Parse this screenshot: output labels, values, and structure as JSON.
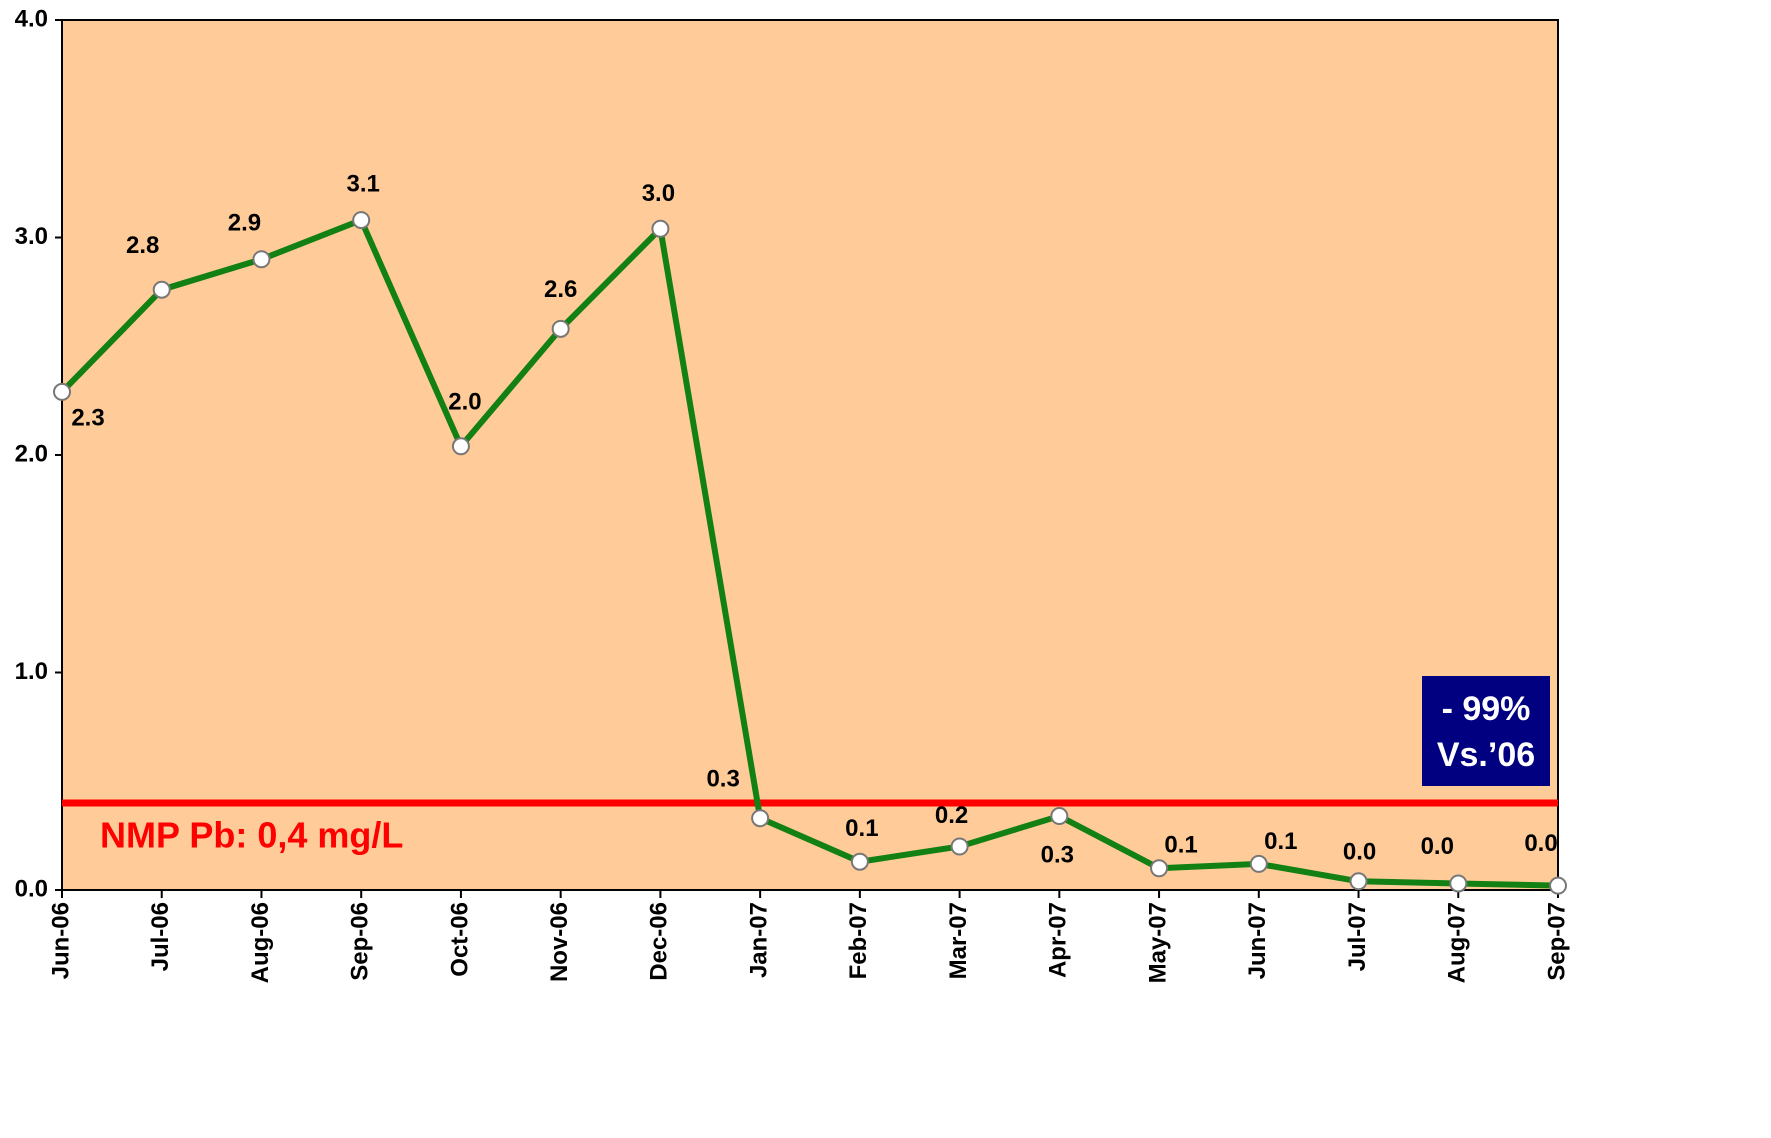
{
  "chart_data": {
    "type": "line",
    "categories": [
      "Jun-06",
      "Jul-06",
      "Aug-06",
      "Sep-06",
      "Oct-06",
      "Nov-06",
      "Dec-06",
      "Jan-07",
      "Feb-07",
      "Mar-07",
      "Apr-07",
      "May-07",
      "Jun-07",
      "Jul-07",
      "Aug-07",
      "Sep-07"
    ],
    "values": [
      2.29,
      2.76,
      2.9,
      3.08,
      2.04,
      2.58,
      3.04,
      0.33,
      0.13,
      0.2,
      0.34,
      0.1,
      0.12,
      0.04,
      0.03,
      0.02
    ],
    "value_labels": [
      "2.3",
      "2.8",
      "2.9",
      "3.1",
      "2.0",
      "2.6",
      "3.0",
      "0.3",
      "0.1",
      "0.2",
      "0.3",
      "0.1",
      "0.1",
      "0.0",
      "0.0",
      "0.0"
    ],
    "color": "#138013",
    "ylim": [
      0,
      4
    ],
    "yticks": [
      {
        "value": 0,
        "label": "0.0"
      },
      {
        "value": 1,
        "label": "1.0"
      },
      {
        "value": 2,
        "label": "2.0"
      },
      {
        "value": 3,
        "label": "3.0"
      },
      {
        "value": 4,
        "label": "4.0"
      }
    ],
    "reference_line": {
      "value": 0.4,
      "color": "#ff0000",
      "label": "NMP Pb: 0,4 mg/L"
    },
    "annotation_box": {
      "lines": [
        "- 99%",
        "Vs.’06"
      ],
      "color": "#000080"
    }
  }
}
